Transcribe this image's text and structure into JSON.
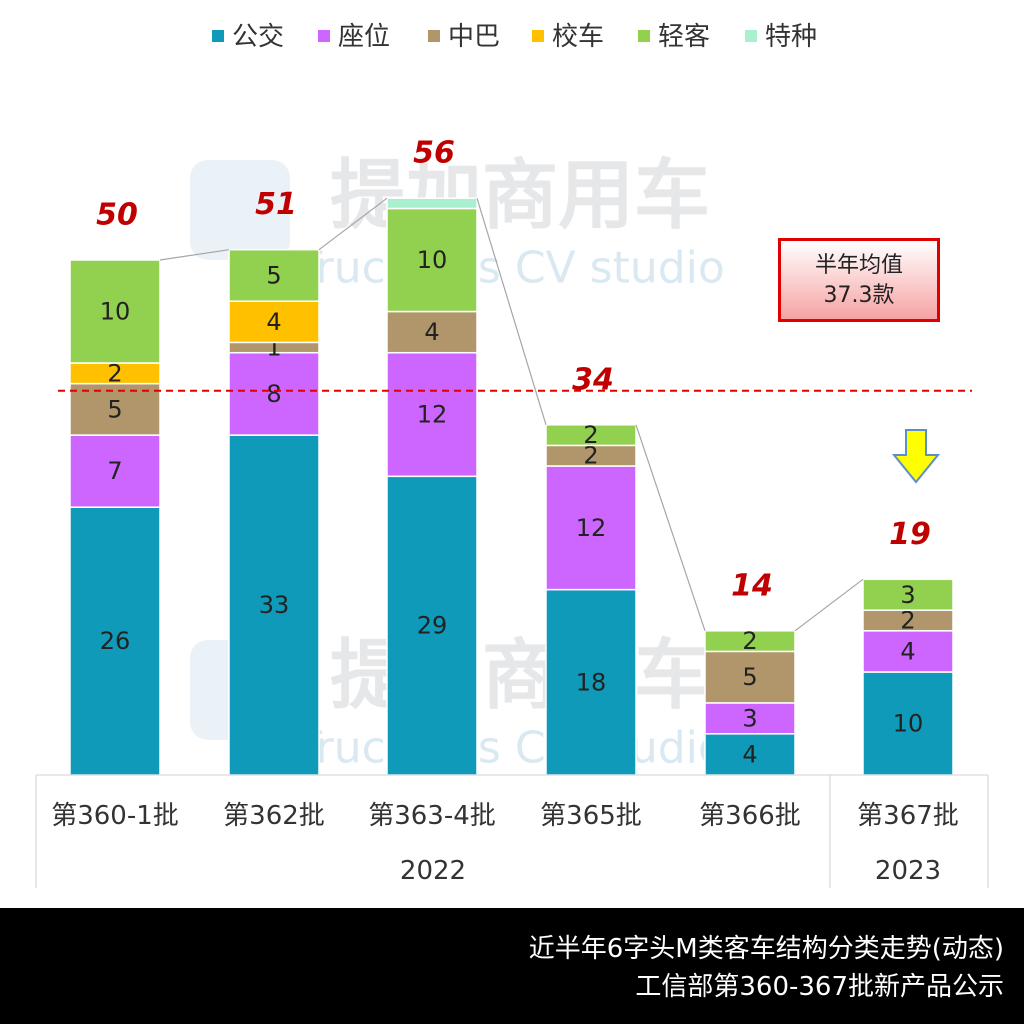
{
  "chart_data": {
    "type": "bar",
    "stacked": true,
    "categories": [
      "第360-1批",
      "第362批",
      "第363-4批",
      "第365批",
      "第366批",
      "第367批"
    ],
    "groups": [
      {
        "label": "2022",
        "categories": [
          "第360-1批",
          "第362批",
          "第363-4批",
          "第365批",
          "第366批"
        ]
      },
      {
        "label": "2023",
        "categories": [
          "第367批"
        ]
      }
    ],
    "series": [
      {
        "name": "公交",
        "color": "#0e9ab8",
        "values": [
          26,
          33,
          29,
          18,
          4,
          10
        ]
      },
      {
        "name": "座位",
        "color": "#cc66ff",
        "values": [
          7,
          8,
          12,
          12,
          3,
          4
        ]
      },
      {
        "name": "中巴",
        "color": "#b0966a",
        "values": [
          5,
          1,
          4,
          2,
          5,
          2
        ]
      },
      {
        "name": "校车",
        "color": "#ffc000",
        "values": [
          2,
          4,
          0,
          0,
          0,
          0
        ]
      },
      {
        "name": "轻客",
        "color": "#92d050",
        "values": [
          10,
          5,
          10,
          2,
          2,
          3
        ]
      },
      {
        "name": "特种",
        "color": "#a8f0d0",
        "values": [
          0,
          0,
          1,
          0,
          0,
          0
        ]
      }
    ],
    "totals": [
      "50",
      "51",
      "56",
      "34",
      "14",
      "19"
    ],
    "ylim": [
      0,
      65
    ],
    "average_line": {
      "value": 37.3,
      "color": "#e00000",
      "style": "dashed"
    },
    "legend_position": "top",
    "grid": false
  },
  "average_box": {
    "line1": "半年均值",
    "line2": "37.3款"
  },
  "watermark": {
    "cn": "提加商用车",
    "en": "TruckPlus CV studio"
  },
  "footer": {
    "line1": "近半年6字头M类客车结构分类走势(动态)",
    "line2": "工信部第360-367批新产品公示"
  },
  "colors": {
    "total_label": "#c00000",
    "arrow": "#ffff00",
    "arrow_border": "#5b8fc9"
  }
}
